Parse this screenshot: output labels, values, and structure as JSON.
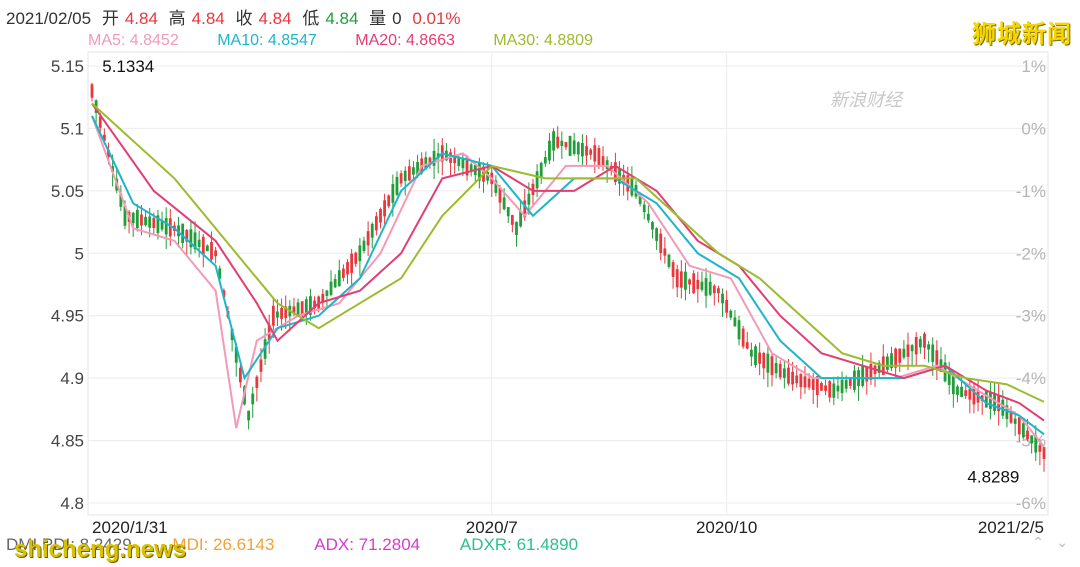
{
  "header": {
    "date": "2021/02/05",
    "open_label": "开",
    "open": "4.84",
    "high_label": "高",
    "high": "4.84",
    "close_label": "收",
    "close": "4.84",
    "low_label": "低",
    "low": "4.84",
    "vol_label": "量",
    "vol": "0",
    "change": "0.01%"
  },
  "ma": {
    "ma5": "MA5: 4.8452",
    "ma10": "MA10: 4.8547",
    "ma20": "MA20: 4.8663",
    "ma30": "MA30: 4.8809"
  },
  "brand": "狮城新闻",
  "sina_watermark": "新浪财经",
  "site_watermark": "shicheng.news",
  "indicators": {
    "pdi": "DMI  PDI: 8.2429",
    "mdi": "MDI: 26.6143",
    "adx": "ADX: 71.2804",
    "adxr": "ADXR: 61.4890"
  },
  "annotations": {
    "max_label": "5.1334",
    "min_label": "4.8289"
  },
  "colors": {
    "up": "#e8373d",
    "down": "#1f9e3a",
    "ma5": "#f29ab7",
    "ma10": "#1fb5c9",
    "ma20": "#e33d72",
    "ma30": "#9cbb2f",
    "mdi": "#f0a23a",
    "adx": "#d63bd1",
    "adxr": "#2bbf8f"
  },
  "chart_data": {
    "type": "candlestick",
    "title": "",
    "y_ticks": [
      "5.15",
      "5.1",
      "5.05",
      "5",
      "4.95",
      "4.9",
      "4.85",
      "4.8"
    ],
    "y_tick_values": [
      5.15,
      5.1,
      5.05,
      5.0,
      4.95,
      4.9,
      4.85,
      4.8
    ],
    "ylim": [
      4.8,
      5.15
    ],
    "right_ticks": [
      "1%",
      "0%",
      "-1%",
      "-2%",
      "-3%",
      "-4%",
      "-5%",
      "-6%"
    ],
    "x_ticks": [
      "2020/1/31",
      "2020/7",
      "2020/10",
      "2021/2/5"
    ],
    "x_tick_positions": [
      0,
      97,
      154,
      231
    ],
    "n_bars": 232,
    "series": [
      {
        "name": "MA5",
        "points": [
          [
            0,
            5.11
          ],
          [
            10,
            5.02
          ],
          [
            20,
            5.01
          ],
          [
            30,
            4.97
          ],
          [
            35,
            4.86
          ],
          [
            40,
            4.93
          ],
          [
            50,
            4.95
          ],
          [
            60,
            4.96
          ],
          [
            70,
            5.0
          ],
          [
            80,
            5.07
          ],
          [
            90,
            5.08
          ],
          [
            97,
            5.06
          ],
          [
            105,
            5.03
          ],
          [
            115,
            5.07
          ],
          [
            125,
            5.07
          ],
          [
            135,
            5.04
          ],
          [
            145,
            4.99
          ],
          [
            155,
            4.98
          ],
          [
            165,
            4.92
          ],
          [
            175,
            4.9
          ],
          [
            185,
            4.9
          ],
          [
            195,
            4.9
          ],
          [
            205,
            4.91
          ],
          [
            215,
            4.89
          ],
          [
            225,
            4.87
          ],
          [
            231,
            4.845
          ]
        ]
      },
      {
        "name": "MA10",
        "points": [
          [
            0,
            5.11
          ],
          [
            10,
            5.04
          ],
          [
            20,
            5.02
          ],
          [
            30,
            4.99
          ],
          [
            37,
            4.9
          ],
          [
            45,
            4.94
          ],
          [
            55,
            4.95
          ],
          [
            65,
            4.98
          ],
          [
            75,
            5.05
          ],
          [
            85,
            5.08
          ],
          [
            97,
            5.07
          ],
          [
            107,
            5.03
          ],
          [
            117,
            5.06
          ],
          [
            127,
            5.06
          ],
          [
            137,
            5.04
          ],
          [
            147,
            5.0
          ],
          [
            157,
            4.98
          ],
          [
            167,
            4.93
          ],
          [
            177,
            4.9
          ],
          [
            187,
            4.9
          ],
          [
            197,
            4.9
          ],
          [
            207,
            4.91
          ],
          [
            217,
            4.88
          ],
          [
            225,
            4.87
          ],
          [
            231,
            4.855
          ]
        ]
      },
      {
        "name": "MA20",
        "points": [
          [
            0,
            5.12
          ],
          [
            15,
            5.05
          ],
          [
            30,
            5.01
          ],
          [
            40,
            4.96
          ],
          [
            45,
            4.93
          ],
          [
            55,
            4.96
          ],
          [
            65,
            4.97
          ],
          [
            75,
            5.0
          ],
          [
            85,
            5.06
          ],
          [
            97,
            5.07
          ],
          [
            107,
            5.05
          ],
          [
            117,
            5.05
          ],
          [
            127,
            5.07
          ],
          [
            137,
            5.05
          ],
          [
            147,
            5.01
          ],
          [
            157,
            4.99
          ],
          [
            167,
            4.95
          ],
          [
            177,
            4.92
          ],
          [
            187,
            4.91
          ],
          [
            197,
            4.9
          ],
          [
            207,
            4.91
          ],
          [
            217,
            4.89
          ],
          [
            225,
            4.88
          ],
          [
            231,
            4.866
          ]
        ]
      },
      {
        "name": "MA30",
        "points": [
          [
            0,
            5.12
          ],
          [
            20,
            5.06
          ],
          [
            35,
            5.0
          ],
          [
            45,
            4.96
          ],
          [
            55,
            4.94
          ],
          [
            65,
            4.96
          ],
          [
            75,
            4.98
          ],
          [
            85,
            5.03
          ],
          [
            97,
            5.07
          ],
          [
            110,
            5.06
          ],
          [
            122,
            5.06
          ],
          [
            132,
            5.06
          ],
          [
            142,
            5.03
          ],
          [
            152,
            5.0
          ],
          [
            162,
            4.98
          ],
          [
            172,
            4.95
          ],
          [
            182,
            4.92
          ],
          [
            192,
            4.91
          ],
          [
            202,
            4.91
          ],
          [
            212,
            4.9
          ],
          [
            222,
            4.895
          ],
          [
            231,
            4.881
          ]
        ]
      }
    ],
    "close_path": [
      [
        0,
        5.13
      ],
      [
        8,
        5.03
      ],
      [
        20,
        5.02
      ],
      [
        30,
        5.0
      ],
      [
        38,
        4.87
      ],
      [
        44,
        4.95
      ],
      [
        55,
        4.96
      ],
      [
        65,
        5.0
      ],
      [
        75,
        5.06
      ],
      [
        85,
        5.08
      ],
      [
        97,
        5.06
      ],
      [
        103,
        5.02
      ],
      [
        112,
        5.09
      ],
      [
        122,
        5.08
      ],
      [
        132,
        5.05
      ],
      [
        142,
        4.98
      ],
      [
        152,
        4.97
      ],
      [
        160,
        4.92
      ],
      [
        170,
        4.9
      ],
      [
        180,
        4.89
      ],
      [
        192,
        4.91
      ],
      [
        202,
        4.93
      ],
      [
        210,
        4.89
      ],
      [
        220,
        4.88
      ],
      [
        231,
        4.84
      ]
    ],
    "max": {
      "index": 2,
      "value": 5.1334
    },
    "min": {
      "index": 226,
      "value": 4.8289
    }
  }
}
